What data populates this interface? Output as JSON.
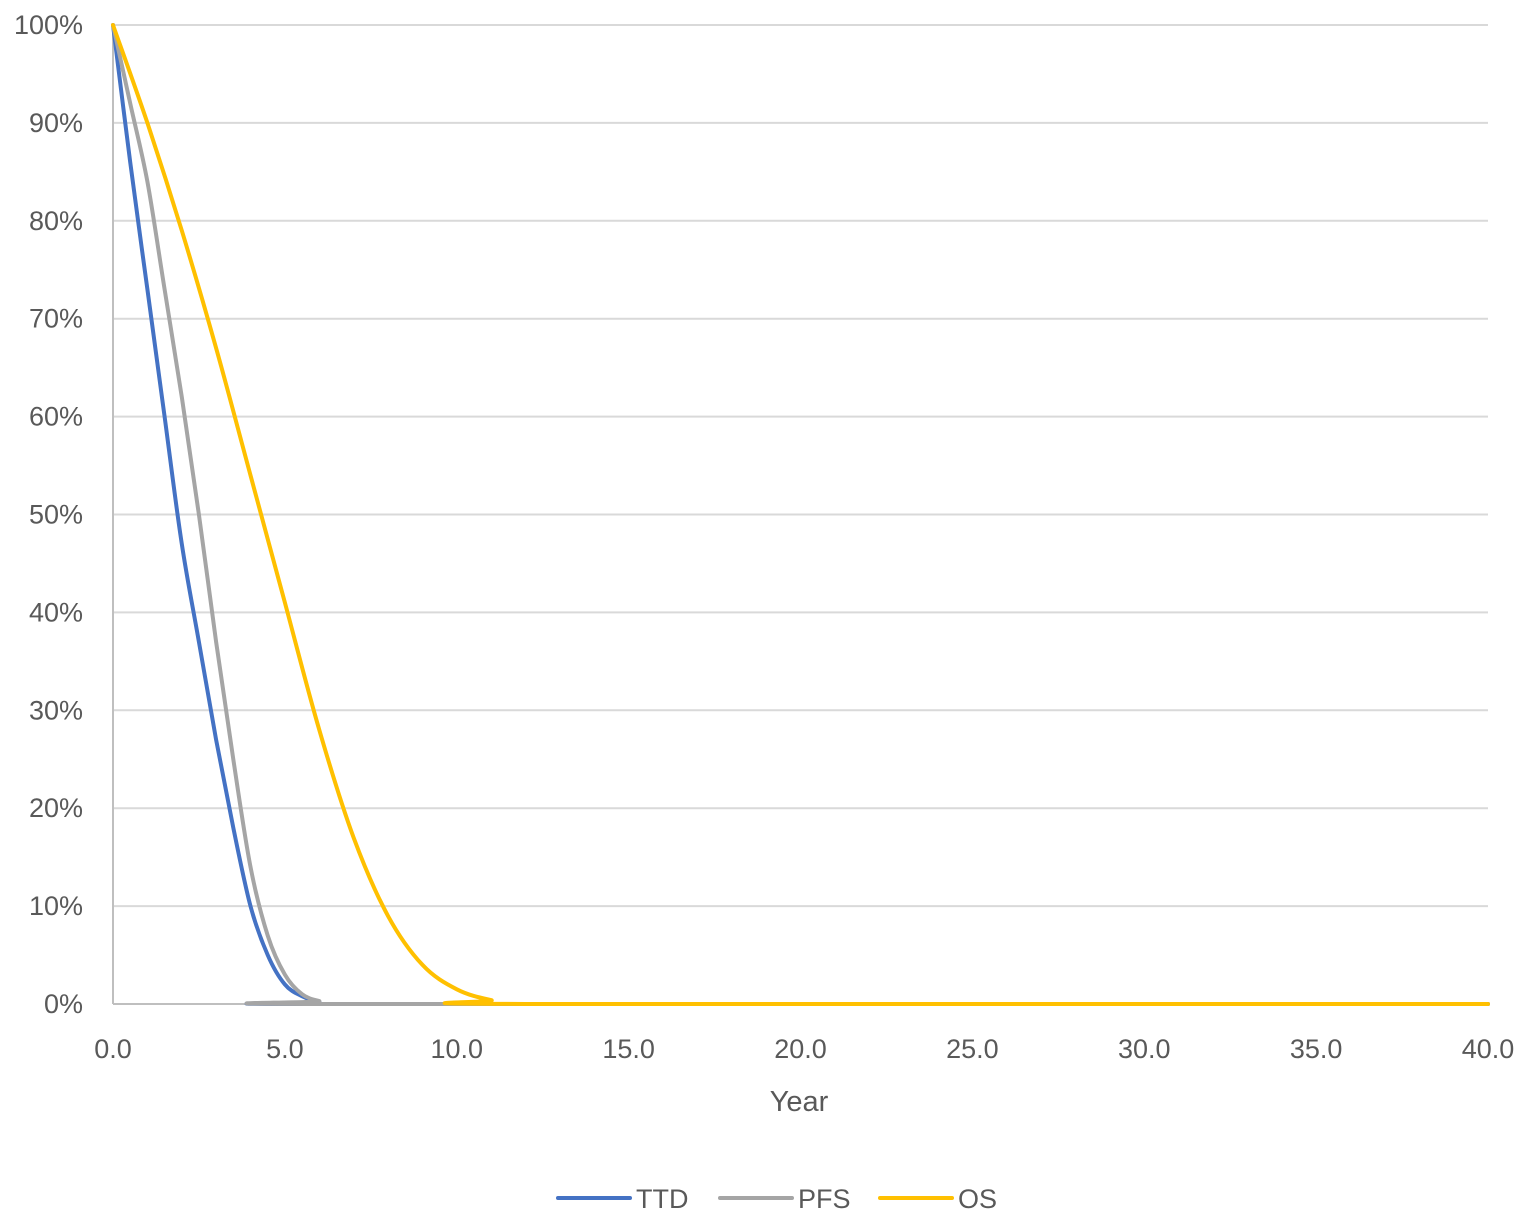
{
  "chart_data": {
    "type": "line",
    "title": "",
    "xlabel": "Year",
    "ylabel": "",
    "xlim": [
      0,
      40
    ],
    "ylim": [
      0,
      1
    ],
    "x_ticks": [
      "0.0",
      "5.0",
      "10.0",
      "15.0",
      "20.0",
      "25.0",
      "30.0",
      "35.0",
      "40.0"
    ],
    "y_ticks": [
      "0%",
      "10%",
      "20%",
      "30%",
      "40%",
      "50%",
      "60%",
      "70%",
      "80%",
      "90%",
      "100%"
    ],
    "grid": "horizontal",
    "legend_position": "bottom",
    "series": [
      {
        "name": "TTD",
        "color": "#4472c4",
        "points": [
          [
            0,
            1.0
          ],
          [
            0.5,
            0.86
          ],
          [
            1.0,
            0.73
          ],
          [
            1.5,
            0.6
          ],
          [
            2.0,
            0.47
          ],
          [
            2.5,
            0.37
          ],
          [
            3.0,
            0.27
          ],
          [
            3.5,
            0.18
          ],
          [
            4.0,
            0.1
          ],
          [
            4.5,
            0.05
          ],
          [
            5.0,
            0.02
          ],
          [
            5.5,
            0.008
          ],
          [
            6.0,
            0.002
          ],
          [
            6.5,
            0.0
          ],
          [
            40.0,
            0.0
          ]
        ]
      },
      {
        "name": "PFS",
        "color": "#a5a5a5",
        "points": [
          [
            0,
            1.0
          ],
          [
            0.5,
            0.92
          ],
          [
            1.0,
            0.84
          ],
          [
            1.5,
            0.73
          ],
          [
            2.0,
            0.62
          ],
          [
            2.5,
            0.5
          ],
          [
            3.0,
            0.37
          ],
          [
            3.5,
            0.25
          ],
          [
            4.0,
            0.14
          ],
          [
            4.5,
            0.07
          ],
          [
            5.0,
            0.03
          ],
          [
            5.5,
            0.01
          ],
          [
            6.0,
            0.003
          ],
          [
            6.5,
            0.0
          ],
          [
            40.0,
            0.0
          ]
        ]
      },
      {
        "name": "OS",
        "color": "#ffc000",
        "points": [
          [
            0,
            1.0
          ],
          [
            1.0,
            0.9
          ],
          [
            2.0,
            0.79
          ],
          [
            3.0,
            0.67
          ],
          [
            4.0,
            0.54
          ],
          [
            5.0,
            0.41
          ],
          [
            6.0,
            0.28
          ],
          [
            7.0,
            0.17
          ],
          [
            8.0,
            0.09
          ],
          [
            9.0,
            0.04
          ],
          [
            10.0,
            0.015
          ],
          [
            11.0,
            0.004
          ],
          [
            12.0,
            0.0
          ],
          [
            40.0,
            0.0
          ]
        ]
      }
    ]
  }
}
